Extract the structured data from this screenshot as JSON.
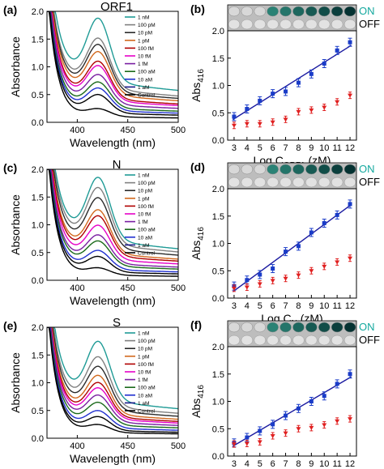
{
  "figure": {
    "colors": {
      "spectra": [
        "#1f9b96",
        "#808080",
        "#2b2b2b",
        "#d2691e",
        "#b00000",
        "#e600c8",
        "#7a1fa2",
        "#1a6a1a",
        "#2030d0",
        "#000000"
      ],
      "on_series": "#1a3cc8",
      "fit_line": "#1a1aa0",
      "off_series": "#e02020",
      "on_label": "#13a89e"
    }
  },
  "chart_data": [
    {
      "type": "line",
      "panel_label": "(a)",
      "title": "ORF1",
      "xlabel": "Wavelength (nm)",
      "ylabel": "Absorbance",
      "xlim": [
        370,
        500
      ],
      "ylim": [
        0,
        2.0
      ],
      "xticks": [
        "400",
        "450",
        "500"
      ],
      "yticks": [
        "0.0",
        "0.5",
        "1.0",
        "1.5",
        "2.0"
      ],
      "legend": [
        "1 nM",
        "100 pM",
        "10 pM",
        "1 pM",
        "100 fM",
        "10 fM",
        "1 fM",
        "100 aM",
        "10 aM",
        "1 aM",
        "Control"
      ],
      "series": [
        {
          "name": "1 nM",
          "peak": 1.74,
          "trough": 1.6
        },
        {
          "name": "100 pM",
          "peak": 1.4,
          "trough": 1.32
        },
        {
          "name": "10 pM",
          "peak": 1.3,
          "trough": 1.2
        },
        {
          "name": "1 pM",
          "peak": 1.18,
          "trough": 1.08
        },
        {
          "name": "100 fM",
          "peak": 1.02,
          "trough": 0.92
        },
        {
          "name": "10 fM",
          "peak": 0.95,
          "trough": 0.84
        },
        {
          "name": "1 fM",
          "peak": 0.8,
          "trough": 0.7
        },
        {
          "name": "100 aM",
          "peak": 0.68,
          "trough": 0.56
        },
        {
          "name": "10 aM",
          "peak": 0.58,
          "trough": 0.46
        },
        {
          "name": "1 aM",
          "peak": 0.47,
          "trough": 0.36
        },
        {
          "name": "Control",
          "peak": 0.22,
          "trough": 0.22
        }
      ]
    },
    {
      "type": "scatter",
      "panel_label": "(b)",
      "xlabel": "Log C",
      "xlabel_sub": "ORF1",
      "xlabel_unit": " (zM)",
      "ylabel": "Abs",
      "ylabel_sub": "416",
      "xlim": [
        2.5,
        12.5
      ],
      "ylim": [
        0,
        2.0
      ],
      "xticks": [
        "3",
        "4",
        "5",
        "6",
        "7",
        "8",
        "9",
        "10",
        "11",
        "12"
      ],
      "yticks": [
        "0.0",
        "0.5",
        "1.0",
        "1.5",
        "2.0"
      ],
      "legend": [
        "ON",
        "OFF"
      ],
      "x": [
        3,
        4,
        5,
        6,
        7,
        8,
        9,
        10,
        11,
        12
      ],
      "series": [
        {
          "name": "ON",
          "values": [
            0.43,
            0.57,
            0.72,
            0.85,
            0.89,
            1.05,
            1.21,
            1.4,
            1.64,
            1.79
          ]
        },
        {
          "name": "OFF",
          "values": [
            0.27,
            0.3,
            0.3,
            0.33,
            0.38,
            0.52,
            0.55,
            0.6,
            0.7,
            0.82
          ]
        }
      ]
    },
    {
      "type": "line",
      "panel_label": "(c)",
      "title": "N",
      "xlabel": "Wavelength (nm)",
      "ylabel": "Absorbance",
      "xlim": [
        370,
        500
      ],
      "ylim": [
        0,
        2.0
      ],
      "xticks": [
        "400",
        "450",
        "500"
      ],
      "yticks": [
        "0.0",
        "0.5",
        "1.0",
        "1.5",
        "2.0"
      ],
      "legend": [
        "1 nM",
        "100 pM",
        "10 pM",
        "1 pM",
        "100 fM",
        "10 fM",
        "1 fM",
        "100 aM",
        "10 aM",
        "1 aM",
        "Control"
      ],
      "series": [
        {
          "name": "1 nM",
          "peak": 1.72,
          "trough": 1.58
        },
        {
          "name": "100 pM",
          "peak": 1.55,
          "trough": 1.42
        },
        {
          "name": "10 pM",
          "peak": 1.38,
          "trough": 1.26
        },
        {
          "name": "1 pM",
          "peak": 1.18,
          "trough": 1.06
        },
        {
          "name": "100 fM",
          "peak": 1.08,
          "trough": 0.96
        },
        {
          "name": "10 fM",
          "peak": 0.92,
          "trough": 0.82
        },
        {
          "name": "1 fM",
          "peak": 0.76,
          "trough": 0.66
        },
        {
          "name": "100 aM",
          "peak": 0.66,
          "trough": 0.56
        },
        {
          "name": "10 aM",
          "peak": 0.5,
          "trough": 0.42
        },
        {
          "name": "1 aM",
          "peak": 0.4,
          "trough": 0.32
        },
        {
          "name": "Control",
          "peak": 0.2,
          "trough": 0.2
        }
      ]
    },
    {
      "type": "scatter",
      "panel_label": "(d)",
      "xlabel": "Log C",
      "xlabel_sub": "N",
      "xlabel_unit": " (zM)",
      "ylabel": "Abs",
      "ylabel_sub": "416",
      "xlim": [
        2.5,
        12.5
      ],
      "ylim": [
        0,
        2.0
      ],
      "xticks": [
        "3",
        "4",
        "5",
        "6",
        "7",
        "8",
        "9",
        "10",
        "11",
        "12"
      ],
      "yticks": [
        "0.0",
        "0.5",
        "1.0",
        "1.5",
        "2.0"
      ],
      "legend": [
        "ON",
        "OFF"
      ],
      "x": [
        3,
        4,
        5,
        6,
        7,
        8,
        9,
        10,
        11,
        12
      ],
      "series": [
        {
          "name": "ON",
          "values": [
            0.22,
            0.33,
            0.43,
            0.54,
            0.85,
            0.95,
            1.2,
            1.37,
            1.52,
            1.72
          ]
        },
        {
          "name": "OFF",
          "values": [
            0.18,
            0.2,
            0.26,
            0.32,
            0.36,
            0.42,
            0.5,
            0.58,
            0.66,
            0.73
          ]
        }
      ]
    },
    {
      "type": "line",
      "panel_label": "(e)",
      "title": "S",
      "xlabel": "Wavelength (nm)",
      "ylabel": "Absorbance",
      "xlim": [
        370,
        500
      ],
      "ylim": [
        0,
        2.0
      ],
      "xticks": [
        "400",
        "450",
        "500"
      ],
      "yticks": [
        "0.0",
        "0.5",
        "1.0",
        "1.5",
        "2.0"
      ],
      "legend": [
        "1 nM",
        "100 pM",
        "10 pM",
        "1 pM",
        "100 fM",
        "10 fM",
        "1 fM",
        "100 aM",
        "10 aM",
        "1 aM",
        "Control"
      ],
      "series": [
        {
          "name": "1 nM",
          "peak": 1.62,
          "trough": 1.48
        },
        {
          "name": "100 pM",
          "peak": 1.36,
          "trough": 1.25
        },
        {
          "name": "10 pM",
          "peak": 1.2,
          "trough": 1.1
        },
        {
          "name": "1 pM",
          "peak": 1.05,
          "trough": 0.95
        },
        {
          "name": "100 fM",
          "peak": 0.93,
          "trough": 0.84
        },
        {
          "name": "10 fM",
          "peak": 0.84,
          "trough": 0.76
        },
        {
          "name": "1 fM",
          "peak": 0.72,
          "trough": 0.64
        },
        {
          "name": "100 aM",
          "peak": 0.6,
          "trough": 0.52
        },
        {
          "name": "10 aM",
          "peak": 0.46,
          "trough": 0.4
        },
        {
          "name": "1 aM",
          "peak": 0.36,
          "trough": 0.3
        },
        {
          "name": "Control",
          "peak": 0.22,
          "trough": 0.22
        }
      ]
    },
    {
      "type": "scatter",
      "panel_label": "(f)",
      "xlabel": "Log C",
      "xlabel_sub": "S",
      "xlabel_unit": " (zM)",
      "ylabel": "Abs",
      "ylabel_sub": "416",
      "xlim": [
        2.5,
        12.5
      ],
      "ylim": [
        0,
        2.0
      ],
      "xticks": [
        "3",
        "4",
        "5",
        "6",
        "7",
        "8",
        "9",
        "10",
        "11",
        "12"
      ],
      "yticks": [
        "0.0",
        "0.5",
        "1.0",
        "1.5",
        "2.0"
      ],
      "legend": [
        "ON",
        "OFF"
      ],
      "x": [
        3,
        4,
        5,
        6,
        7,
        8,
        9,
        10,
        11,
        12
      ],
      "series": [
        {
          "name": "ON",
          "values": [
            0.24,
            0.34,
            0.46,
            0.58,
            0.74,
            0.87,
            1.0,
            1.1,
            1.32,
            1.5
          ]
        },
        {
          "name": "OFF",
          "values": [
            0.22,
            0.23,
            0.26,
            0.37,
            0.42,
            0.5,
            0.52,
            0.57,
            0.64,
            0.68
          ]
        }
      ]
    }
  ]
}
